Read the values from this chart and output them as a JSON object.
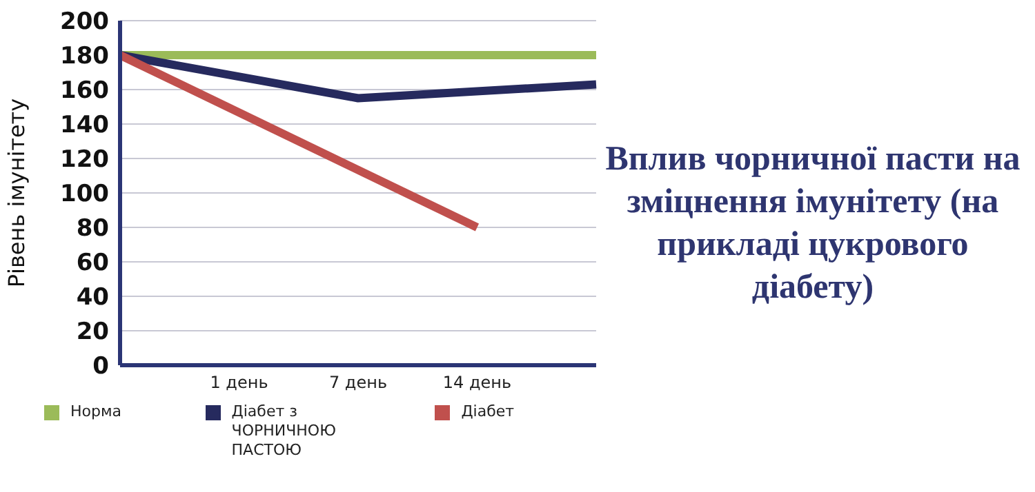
{
  "chart_data": {
    "type": "line",
    "title": "Вплив чорничної пасти на зміцнення імунітету (на прикладі цукрового діабету)",
    "ylabel": "Рівень імунітету",
    "categories": [
      null,
      "1 день",
      "7 день",
      "14 день",
      null
    ],
    "series": [
      {
        "name": "Норма",
        "color": "#9bbb59",
        "values": [
          180,
          null,
          null,
          null,
          180
        ]
      },
      {
        "name": "Діабет з ЧОРНИЧНОЮ ПАСТОЮ",
        "color": "#262a5e",
        "values": [
          180,
          null,
          155,
          null,
          163
        ]
      },
      {
        "name": "Діабет",
        "color": "#c0504d",
        "values": [
          180,
          null,
          null,
          80,
          null
        ]
      }
    ],
    "ylim": [
      0,
      200
    ],
    "yticks": [
      0,
      20,
      40,
      60,
      80,
      100,
      120,
      140,
      160,
      180,
      200
    ],
    "grid": "y",
    "legend": "bottom",
    "marker": "none",
    "line_style": "solid"
  }
}
